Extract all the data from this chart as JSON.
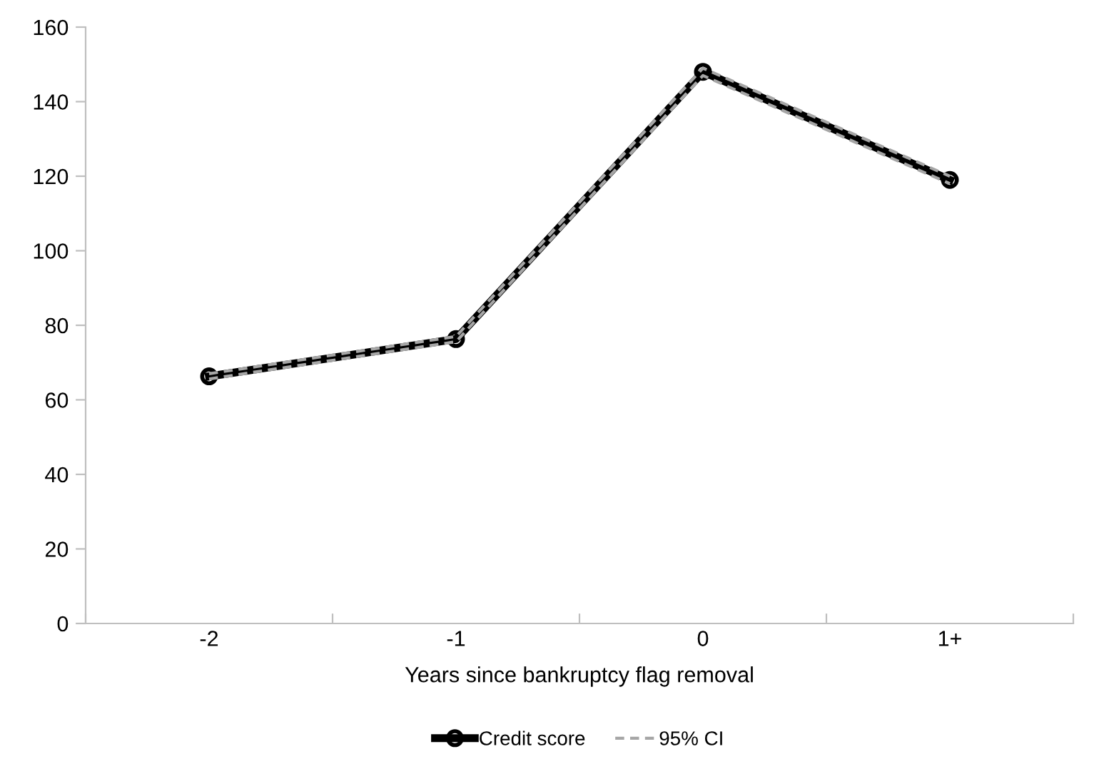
{
  "chart_data": {
    "type": "line",
    "xlabel": "Years since bankruptcy flag removal",
    "categories": [
      "-2",
      "-1",
      "0",
      "1+"
    ],
    "series": [
      {
        "name": "Credit score",
        "color": "#000000",
        "values": [
          66.3,
          76.3,
          148,
          119
        ],
        "marker": "circle",
        "line_style": "solid"
      },
      {
        "name": "95% CI",
        "color": "#a6a6a6",
        "values": [
          67,
          77,
          149,
          120
        ],
        "marker": "none",
        "line_style": "dashed"
      },
      {
        "color": "#a6a6a6",
        "values": [
          65.6,
          75.6,
          147,
          118
        ],
        "marker": "none",
        "line_style": "dashed"
      }
    ],
    "ylim": [
      0,
      160
    ],
    "yticks": [
      0,
      20,
      40,
      60,
      80,
      100,
      120,
      140,
      160
    ],
    "grid": false,
    "legend": "bottom"
  }
}
